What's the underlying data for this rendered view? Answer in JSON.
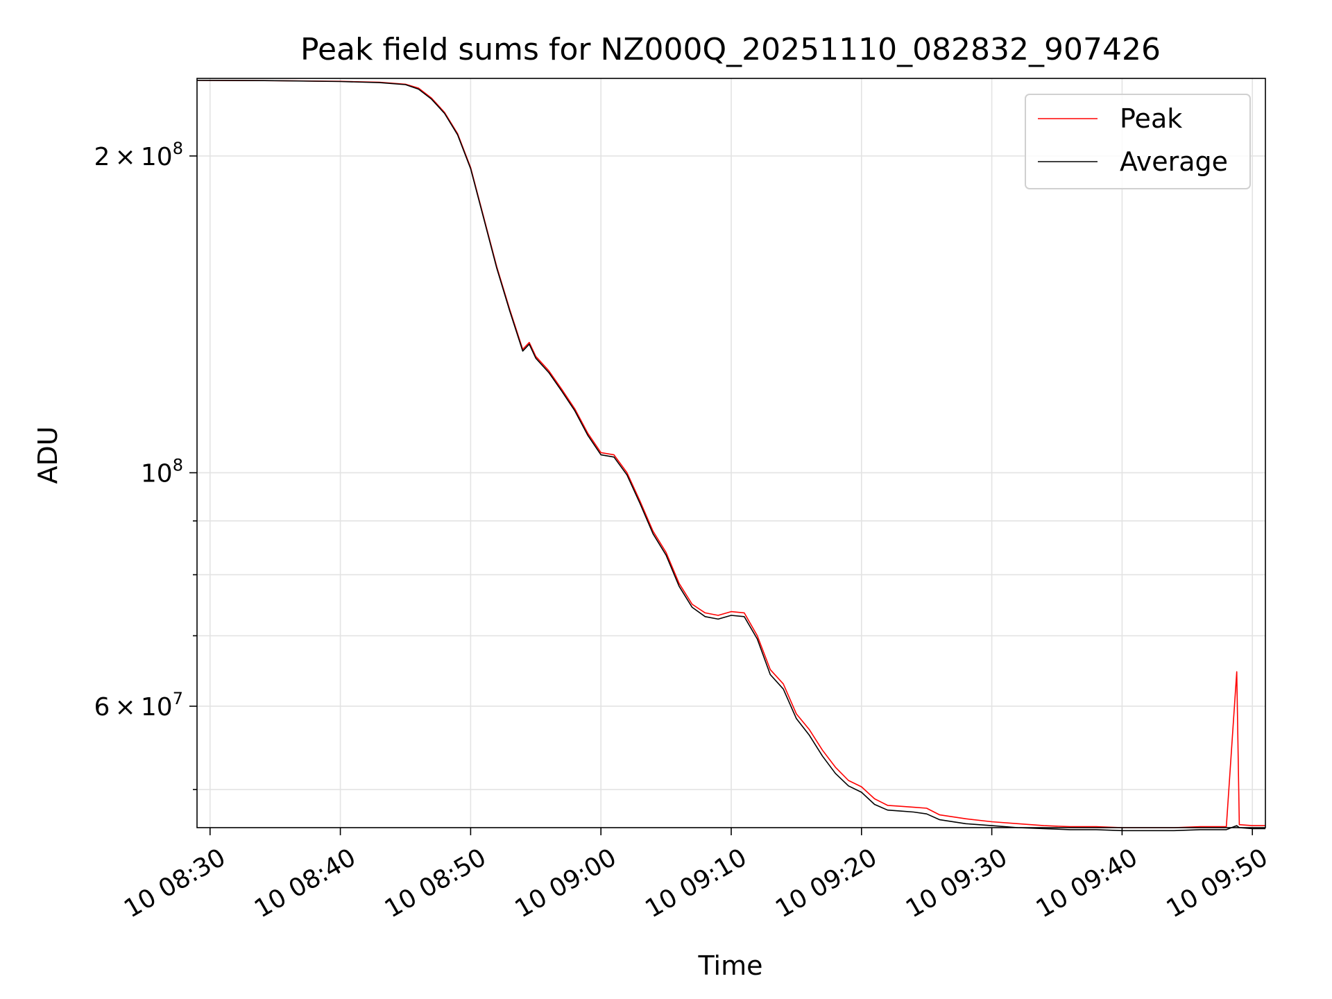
{
  "chart_data": {
    "type": "line",
    "title": "Peak field sums for NZ000Q_20251110_082832_907426",
    "xlabel": "Time",
    "ylabel": "ADU",
    "yscale": "log",
    "ylim": [
      46000000,
      237000000
    ],
    "xlim_minutes": [
      "08:29",
      "09:51"
    ],
    "grid": true,
    "legend_position": "top-right",
    "x_ticks": [
      "10 08:30",
      "10 08:40",
      "10 08:50",
      "10 09:00",
      "10 09:10",
      "10 09:20",
      "10 09:30",
      "10 09:40",
      "10 09:50"
    ],
    "y_tick_labels": [
      {
        "value": 200000000,
        "mantissa": "2",
        "exponent": "8"
      },
      {
        "value": 100000000,
        "mantissa": "",
        "exponent": "8"
      },
      {
        "value": 60000000,
        "mantissa": "6",
        "exponent": "7"
      }
    ],
    "y_minor_ticks": [
      50000000,
      70000000,
      80000000,
      90000000
    ],
    "series": [
      {
        "name": "Peak",
        "color": "#ff0000",
        "x": [
          "08:29",
          "08:35",
          "08:40",
          "08:43",
          "08:45",
          "08:46",
          "08:47",
          "08:48",
          "08:49",
          "08:50",
          "08:51",
          "08:52",
          "08:53",
          "08:54",
          "08:54.5",
          "08:55",
          "08:56",
          "08:57",
          "08:58",
          "08:59",
          "09:00",
          "09:01",
          "09:02",
          "09:03",
          "09:04",
          "09:05",
          "09:06",
          "09:07",
          "09:08",
          "09:09",
          "09:10",
          "09:11",
          "09:12",
          "09:13",
          "09:14",
          "09:15",
          "09:16",
          "09:17",
          "09:18",
          "09:19",
          "09:20",
          "09:21",
          "09:22",
          "09:23",
          "09:24",
          "09:25",
          "09:26",
          "09:28",
          "09:30",
          "09:32",
          "09:34",
          "09:36",
          "09:38",
          "09:40",
          "09:42",
          "09:44",
          "09:46",
          "09:48",
          "09:48.8",
          "09:49",
          "09:50",
          "09:51"
        ],
        "y": [
          236000000,
          235800000,
          235500000,
          235000000,
          234000000,
          232000000,
          227000000,
          220000000,
          210000000,
          195000000,
          175000000,
          157000000,
          143000000,
          131000000,
          133000000,
          129000000,
          125000000,
          120000000,
          115000000,
          109000000,
          104500000,
          104000000,
          100000000,
          94000000,
          88000000,
          84000000,
          78500000,
          75000000,
          73600000,
          73200000,
          73800000,
          73600000,
          70000000,
          65000000,
          63000000,
          59000000,
          57000000,
          54500000,
          52500000,
          51000000,
          50300000,
          49000000,
          48300000,
          48200000,
          48100000,
          48000000,
          47300000,
          46900000,
          46600000,
          46400000,
          46200000,
          46100000,
          46100000,
          46000000,
          46000000,
          46000000,
          46100000,
          46100000,
          64700000,
          46300000,
          46200000,
          46200000
        ]
      },
      {
        "name": "Average",
        "color": "#000000",
        "x": [
          "08:29",
          "08:35",
          "08:40",
          "08:43",
          "08:45",
          "08:46",
          "08:47",
          "08:48",
          "08:49",
          "08:50",
          "08:51",
          "08:52",
          "08:53",
          "08:54",
          "08:54.5",
          "08:55",
          "08:56",
          "08:57",
          "08:58",
          "08:59",
          "09:00",
          "09:01",
          "09:02",
          "09:03",
          "09:04",
          "09:05",
          "09:06",
          "09:07",
          "09:08",
          "09:09",
          "09:10",
          "09:11",
          "09:12",
          "09:13",
          "09:14",
          "09:15",
          "09:16",
          "09:17",
          "09:18",
          "09:19",
          "09:20",
          "09:21",
          "09:22",
          "09:23",
          "09:24",
          "09:25",
          "09:26",
          "09:28",
          "09:30",
          "09:32",
          "09:34",
          "09:36",
          "09:38",
          "09:40",
          "09:42",
          "09:44",
          "09:46",
          "09:48",
          "09:48.8",
          "09:49",
          "09:50",
          "09:51"
        ],
        "y": [
          236000000,
          235800000,
          235400000,
          234800000,
          233800000,
          231500000,
          226500000,
          219500000,
          209500000,
          194500000,
          174500000,
          156500000,
          142500000,
          130500000,
          132500000,
          128500000,
          124500000,
          119500000,
          114500000,
          108500000,
          104000000,
          103500000,
          99500000,
          93500000,
          87500000,
          83500000,
          78000000,
          74500000,
          73000000,
          72600000,
          73200000,
          73000000,
          69500000,
          64300000,
          62300000,
          58400000,
          56300000,
          53800000,
          51800000,
          50400000,
          49700000,
          48400000,
          47800000,
          47700000,
          47600000,
          47400000,
          46800000,
          46400000,
          46200000,
          46000000,
          45900000,
          45800000,
          45800000,
          45700000,
          45700000,
          45700000,
          45800000,
          45800000,
          46200000,
          46000000,
          45900000,
          45900000
        ]
      }
    ]
  }
}
